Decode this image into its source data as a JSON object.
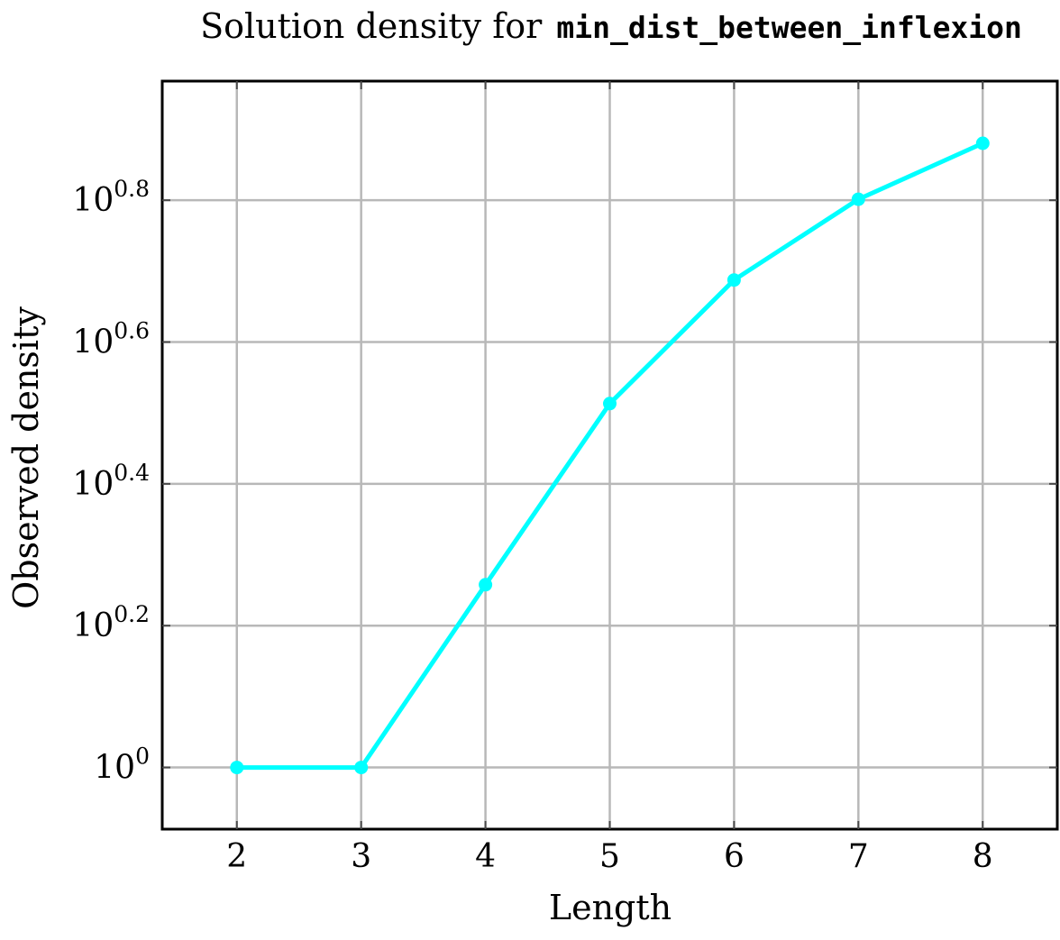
{
  "chart_data": {
    "type": "line",
    "title_prefix": "Solution density for",
    "title_code": "min_dist_between_inflexion",
    "xlabel": "Length",
    "ylabel": "Observed density",
    "y_scale": "log10",
    "grid": true,
    "x_ticks": [
      2,
      3,
      4,
      5,
      6,
      7,
      8
    ],
    "y_ticks": [
      {
        "exponent": 0,
        "base": "10",
        "exp_label": "0"
      },
      {
        "exponent": 0.2,
        "base": "10",
        "exp_label": "0.2"
      },
      {
        "exponent": 0.4,
        "base": "10",
        "exp_label": "0.4"
      },
      {
        "exponent": 0.6,
        "base": "10",
        "exp_label": "0.6"
      },
      {
        "exponent": 0.8,
        "base": "10",
        "exp_label": "0.8"
      }
    ],
    "xlim": [
      1.4,
      8.6
    ],
    "ylim_log10": [
      -0.087,
      0.968
    ],
    "series": [
      {
        "color": "#00ffff",
        "x": [
          2,
          3,
          4,
          5,
          6,
          7,
          8
        ],
        "y": [
          1.0,
          1.0,
          1.81,
          3.26,
          4.87,
          6.33,
          7.59
        ]
      }
    ]
  }
}
